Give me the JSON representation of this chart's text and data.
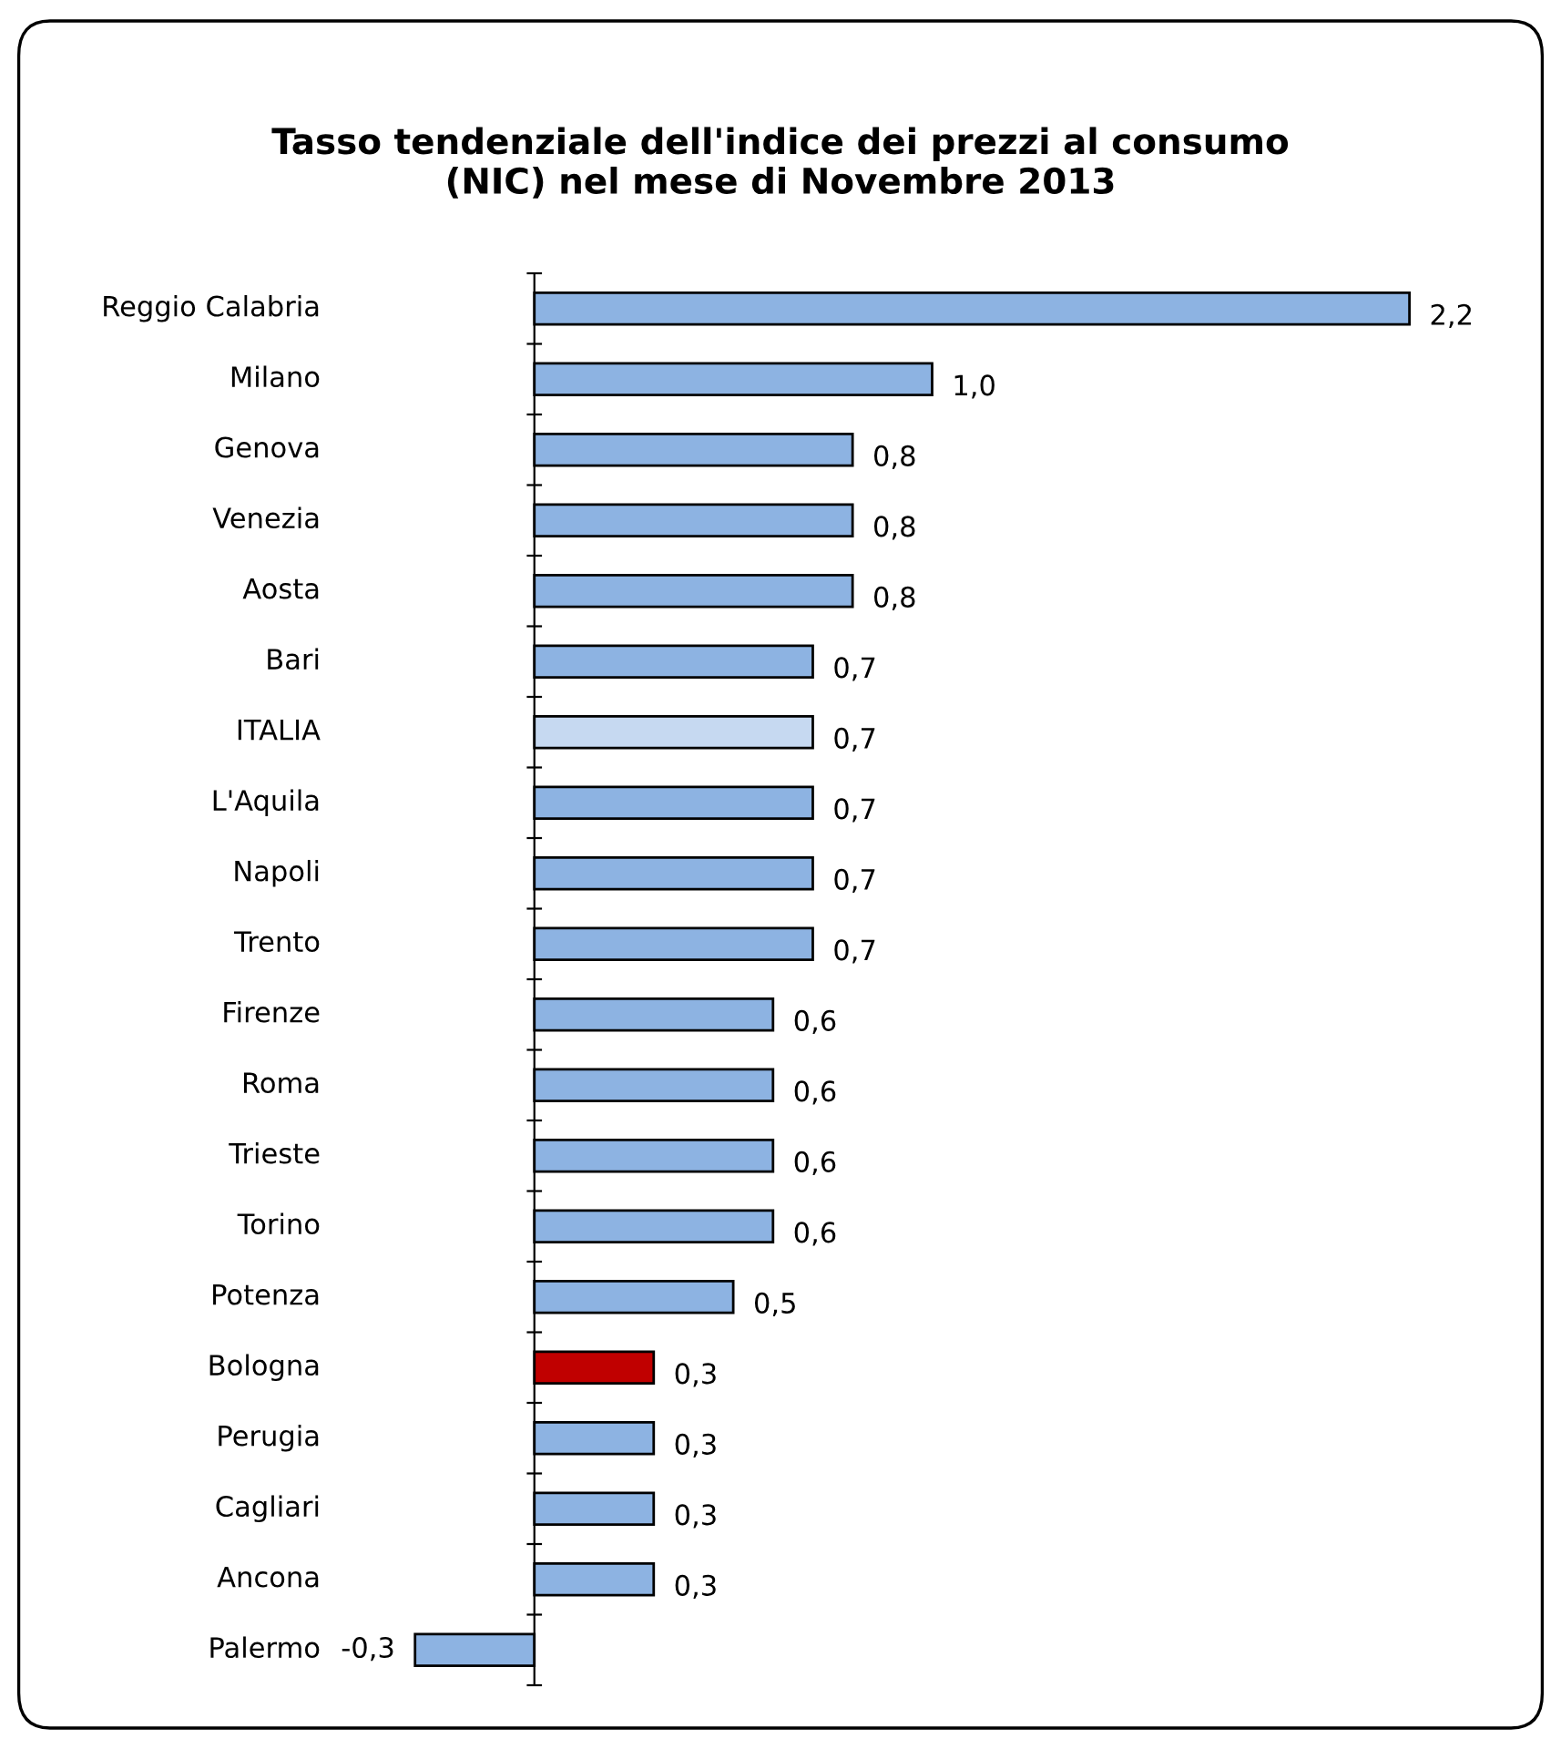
{
  "chart_data": {
    "type": "bar",
    "orientation": "horizontal",
    "title": "Tasso tendenziale dell'indice dei prezzi al consumo\n(NIC) nel mese di Novembre 2013",
    "categories": [
      "Reggio Calabria",
      "Milano",
      "Genova",
      "Venezia",
      "Aosta",
      "Bari",
      "ITALIA",
      "L'Aquila",
      "Napoli",
      "Trento",
      "Firenze",
      "Roma",
      "Trieste",
      "Torino",
      "Potenza",
      "Bologna",
      "Perugia",
      "Cagliari",
      "Ancona",
      "Palermo"
    ],
    "values": [
      2.2,
      1.0,
      0.8,
      0.8,
      0.8,
      0.7,
      0.7,
      0.7,
      0.7,
      0.7,
      0.6,
      0.6,
      0.6,
      0.6,
      0.5,
      0.3,
      0.3,
      0.3,
      0.3,
      -0.3
    ],
    "value_labels": [
      "2,2",
      "1,0",
      "0,8",
      "0,8",
      "0,8",
      "0,7",
      "0,7",
      "0,7",
      "0,7",
      "0,7",
      "0,6",
      "0,6",
      "0,6",
      "0,6",
      "0,5",
      "0,3",
      "0,3",
      "0,3",
      "0,3",
      "-0,3"
    ],
    "colors": [
      "#8db3e2",
      "#8db3e2",
      "#8db3e2",
      "#8db3e2",
      "#8db3e2",
      "#8db3e2",
      "#c6d9f1",
      "#8db3e2",
      "#8db3e2",
      "#8db3e2",
      "#8db3e2",
      "#8db3e2",
      "#8db3e2",
      "#8db3e2",
      "#8db3e2",
      "#c00000",
      "#8db3e2",
      "#8db3e2",
      "#8db3e2",
      "#8db3e2"
    ],
    "grid": false
  }
}
